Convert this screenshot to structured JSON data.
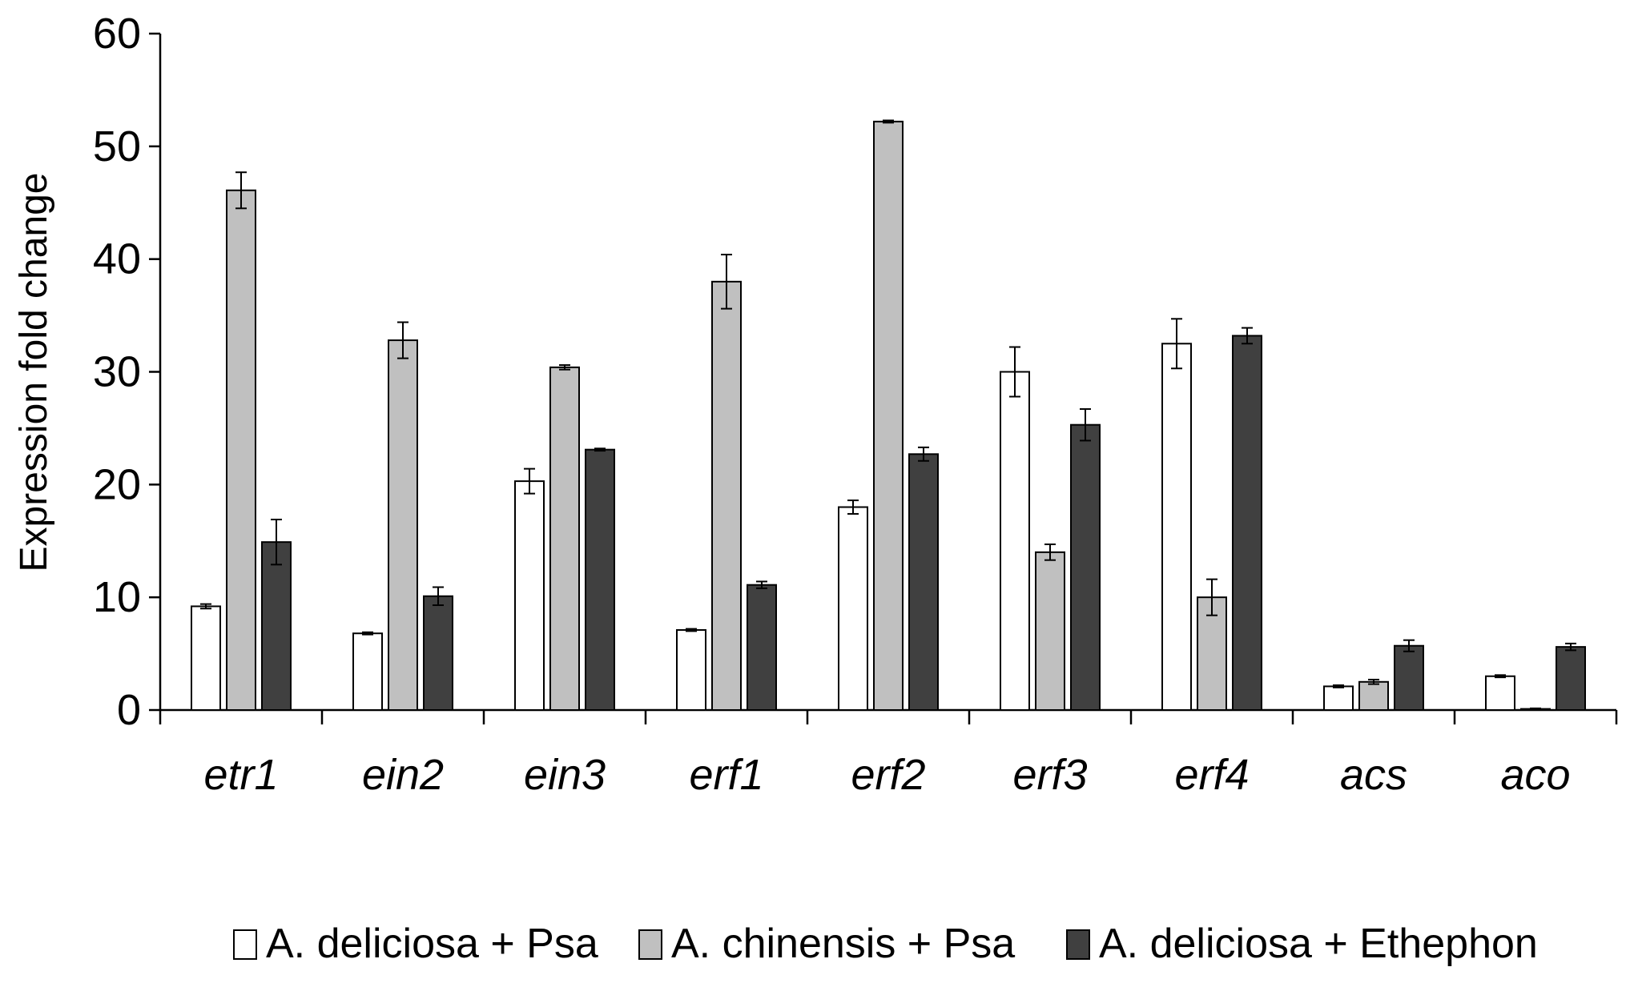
{
  "chart_data": {
    "type": "bar",
    "title": "",
    "xlabel": "",
    "ylabel": "Expression fold change",
    "ylim": [
      0,
      60
    ],
    "yticks": [
      0,
      10,
      20,
      30,
      40,
      50,
      60
    ],
    "grid": false,
    "legend_position": "bottom",
    "categories": [
      "etr1",
      "ein2",
      "ein3",
      "erf1",
      "erf2",
      "erf3",
      "erf4",
      "acs",
      "aco"
    ],
    "series": [
      {
        "name": "A. deliciosa + Psa",
        "color": "#ffffff",
        "values": [
          9.2,
          6.8,
          20.3,
          7.1,
          18.0,
          30.0,
          32.5,
          2.1,
          3.0
        ],
        "errors": [
          0.2,
          0.1,
          1.1,
          0.1,
          0.6,
          2.2,
          2.2,
          0.1,
          0.1
        ]
      },
      {
        "name": "A. chinensis + Psa",
        "color": "#c0c0c0",
        "values": [
          46.1,
          32.8,
          30.4,
          38.0,
          52.2,
          14.0,
          10.0,
          2.5,
          0.1
        ],
        "errors": [
          1.6,
          1.6,
          0.2,
          2.4,
          0.1,
          0.7,
          1.6,
          0.2,
          0.05
        ]
      },
      {
        "name": "A. deliciosa + Ethephon",
        "color": "#404040",
        "values": [
          14.9,
          10.1,
          23.1,
          11.1,
          22.7,
          25.3,
          33.2,
          5.7,
          5.6
        ],
        "errors": [
          2.0,
          0.8,
          0.1,
          0.3,
          0.6,
          1.4,
          0.7,
          0.5,
          0.3
        ]
      }
    ]
  }
}
